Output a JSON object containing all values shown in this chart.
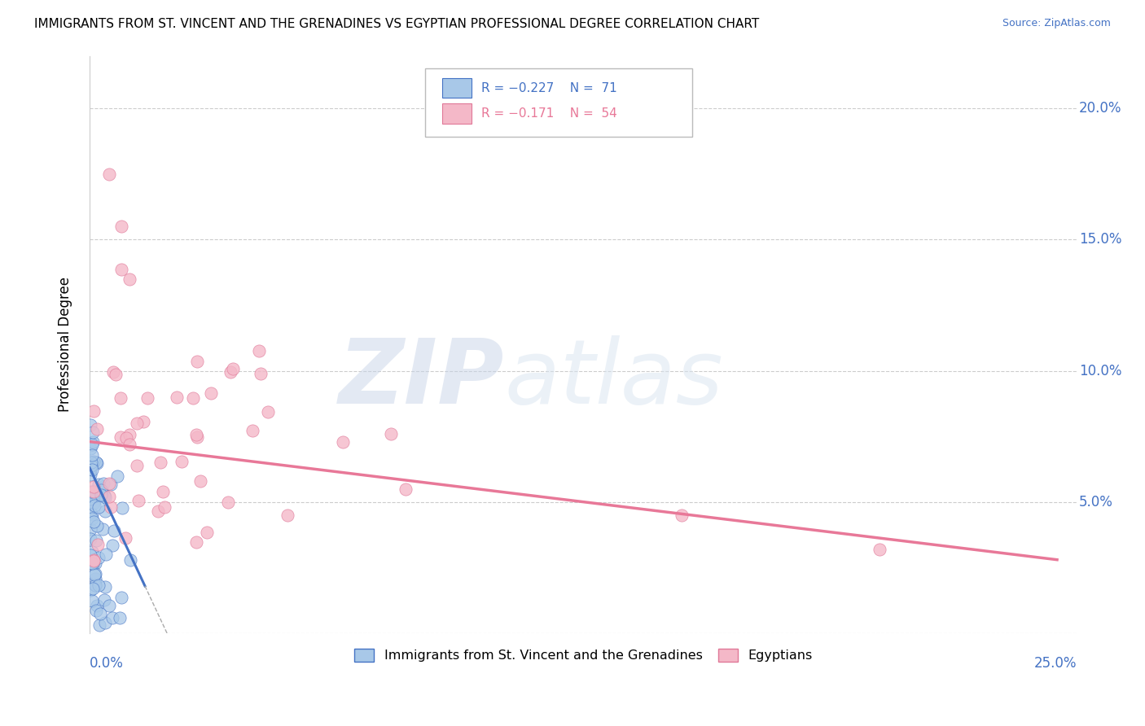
{
  "title": "IMMIGRANTS FROM ST. VINCENT AND THE GRENADINES VS EGYPTIAN PROFESSIONAL DEGREE CORRELATION CHART",
  "source": "Source: ZipAtlas.com",
  "ylabel": "Professional Degree",
  "color_blue": "#A8C8E8",
  "color_blue_edge": "#4472C4",
  "color_pink": "#F4B8C8",
  "color_pink_edge": "#E07898",
  "color_blue_line": "#4472C4",
  "color_pink_line": "#E87898",
  "legend_blue_r": "R = −0.227",
  "legend_blue_n": "N =  71",
  "legend_pink_r": "R = −0.171",
  "legend_pink_n": "N =  54",
  "legend_label_blue": "Immigrants from St. Vincent and the Grenadines",
  "legend_label_pink": "Egyptians",
  "watermark_zip": "ZIP",
  "watermark_atlas": "atlas",
  "xlim": [
    0.0,
    0.25
  ],
  "ylim": [
    0.0,
    0.22
  ],
  "xtick_left": "0.0%",
  "xtick_right": "25.0%",
  "ytick_vals": [
    0.0,
    0.05,
    0.1,
    0.15,
    0.2
  ],
  "ytick_labels": [
    "",
    "5.0%",
    "10.0%",
    "15.0%",
    "20.0%"
  ],
  "grid_color": "#CCCCCC",
  "axis_color": "#CCCCCC",
  "label_color": "#4472C4",
  "blue_line_x0": 0.0,
  "blue_line_x1": 0.014,
  "blue_line_y0": 0.063,
  "blue_line_y1": 0.018,
  "pink_line_x0": 0.0,
  "pink_line_x1": 0.245,
  "pink_line_y0": 0.073,
  "pink_line_y1": 0.028
}
